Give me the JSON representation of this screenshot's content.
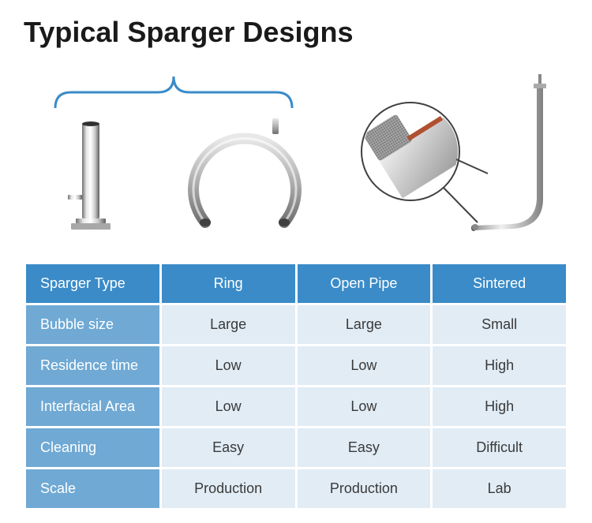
{
  "title": "Typical Sparger Designs",
  "table": {
    "header_bg": "#3a8bc8",
    "label_bg": "#6fa9d4",
    "value_bg": "#e1ecf5",
    "header_color": "#ffffff",
    "value_color": "#3a3a3a",
    "columns": [
      "Sparger Type",
      "Ring",
      "Open Pipe",
      "Sintered"
    ],
    "rows": [
      {
        "label": "Bubble size",
        "values": [
          "Large",
          "Large",
          "Small"
        ]
      },
      {
        "label": "Residence time",
        "values": [
          "Low",
          "Low",
          "High"
        ]
      },
      {
        "label": "Interfacial Area",
        "values": [
          "Low",
          "Low",
          "High"
        ]
      },
      {
        "label": "Cleaning",
        "values": [
          "Easy",
          "Easy",
          "Difficult"
        ]
      },
      {
        "label": "Scale",
        "values": [
          "Production",
          "Production",
          "Lab"
        ]
      }
    ]
  },
  "diagram": {
    "brace_stroke": "#3a8bc8",
    "metal_light": "#d8d8d8",
    "metal_mid": "#b0b0b0",
    "metal_dark": "#808080",
    "sinter_fill": "#9a9a9a",
    "zoom_stroke": "#404040"
  }
}
